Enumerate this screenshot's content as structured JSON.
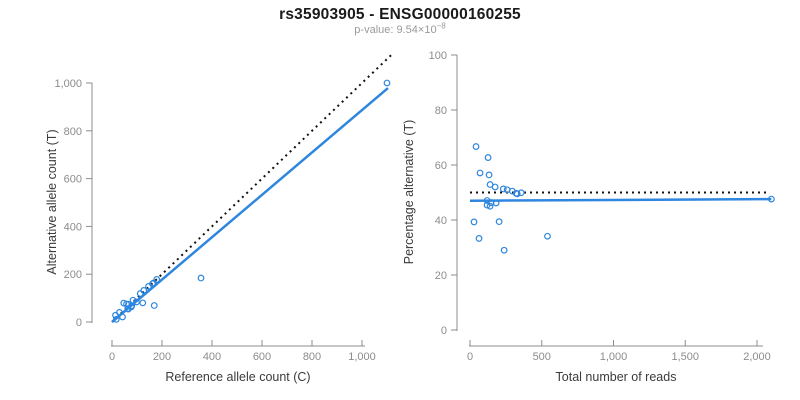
{
  "header": {
    "title": "rs35903905 - ENSG00000160255",
    "subtitle_prefix": "p-value: 9.54×10",
    "subtitle_exponent": "−8"
  },
  "colors": {
    "accent_blue": "#2E86DE",
    "identity_black": "#111111",
    "axis_gray": "#8c8c8c",
    "tick_label_gray": "#8c8c8c",
    "axis_title_dark": "#3b3b3b"
  },
  "chart_data": [
    {
      "type": "scatter",
      "name": "allele-counts-scatter",
      "xlabel": "Reference allele count (C)",
      "ylabel": "Alternative allele count (T)",
      "xlim": [
        0,
        1100
      ],
      "ylim": [
        0,
        1050
      ],
      "xticks": [
        0,
        200,
        400,
        600,
        800,
        1000
      ],
      "yticks": [
        0,
        200,
        400,
        600,
        800,
        1000
      ],
      "grid": false,
      "legend": "none",
      "points": [
        [
          14,
          28
        ],
        [
          47,
          79
        ],
        [
          30,
          40
        ],
        [
          58,
          75
        ],
        [
          66,
          74
        ],
        [
          84,
          91
        ],
        [
          113,
          119
        ],
        [
          127,
          132
        ],
        [
          146,
          149
        ],
        [
          162,
          160
        ],
        [
          166,
          163
        ],
        [
          179,
          178
        ],
        [
          63,
          56
        ],
        [
          79,
          68
        ],
        [
          65,
          54
        ],
        [
          77,
          63
        ],
        [
          98,
          84
        ],
        [
          17,
          11
        ],
        [
          123,
          80
        ],
        [
          42,
          21
        ],
        [
          169,
          69
        ],
        [
          356,
          184
        ],
        [
          1100,
          1000
        ]
      ],
      "lines": [
        {
          "name": "identity-line",
          "style": "dotted",
          "color": "black",
          "from": [
            0,
            0
          ],
          "to": [
            1120,
            1120
          ]
        },
        {
          "name": "fit-line",
          "style": "solid",
          "color": "blue",
          "from": [
            0,
            0
          ],
          "to": [
            1104,
            979
          ]
        }
      ]
    },
    {
      "type": "scatter",
      "name": "percentage-vs-reads-scatter",
      "xlabel": "Total number of reads",
      "ylabel": "Percentage alternative (T)",
      "xlim": [
        0,
        2100
      ],
      "ylim": [
        0,
        100
      ],
      "xticks": [
        0,
        500,
        1000,
        1500,
        2000
      ],
      "yticks": [
        0,
        20,
        40,
        60,
        80,
        100
      ],
      "grid": false,
      "legend": "none",
      "points": [
        [
          42,
          66.7
        ],
        [
          126,
          62.7
        ],
        [
          70,
          57.1
        ],
        [
          133,
          56.4
        ],
        [
          140,
          52.9
        ],
        [
          175,
          52.0
        ],
        [
          232,
          51.3
        ],
        [
          259,
          51.0
        ],
        [
          295,
          50.5
        ],
        [
          322,
          49.7
        ],
        [
          329,
          49.5
        ],
        [
          357,
          49.9
        ],
        [
          119,
          47.1
        ],
        [
          147,
          46.3
        ],
        [
          119,
          45.4
        ],
        [
          140,
          45.0
        ],
        [
          182,
          46.2
        ],
        [
          28,
          39.3
        ],
        [
          203,
          39.4
        ],
        [
          63,
          33.3
        ],
        [
          238,
          29.0
        ],
        [
          540,
          34.1
        ],
        [
          2100,
          47.6
        ]
      ],
      "lines": [
        {
          "name": "expected-50pct-line",
          "style": "dotted",
          "color": "black",
          "from": [
            0,
            50
          ],
          "to": [
            2080,
            50
          ]
        },
        {
          "name": "fit-line",
          "style": "solid",
          "color": "blue",
          "from": [
            0,
            47.0
          ],
          "to": [
            2100,
            47.6
          ]
        }
      ]
    }
  ]
}
